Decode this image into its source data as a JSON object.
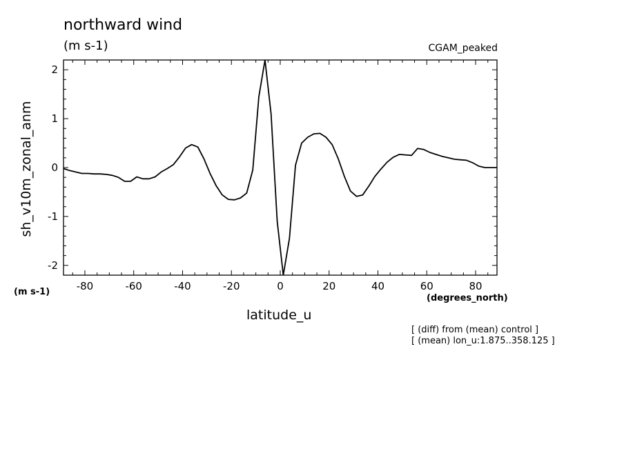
{
  "header": {
    "title": "northward wind",
    "units": "(m s-1)",
    "model": "CGAM_peaked"
  },
  "notes": {
    "line1": "[ (diff) from (mean) control ]",
    "line2": "[ (mean) lon_u:1.875..358.125 ]"
  },
  "chart_data": {
    "type": "line",
    "title": "northward wind",
    "subtitle": "(m s-1)",
    "xlabel": "latitude_u",
    "xunits": "(degrees_north)",
    "ylabel": "sh_v10m_zonal_anm",
    "yunits": "(m s-1)",
    "xlim": [
      -88.75,
      88.75
    ],
    "ylim": [
      -2.2,
      2.2
    ],
    "xticks": [
      -80,
      -60,
      -40,
      -20,
      0,
      20,
      40,
      60,
      80
    ],
    "xtick_labels": [
      "-80",
      "-60",
      "-40",
      "-20",
      "0",
      "20",
      "40",
      "60",
      "80"
    ],
    "yticks": [
      -2,
      -1,
      0,
      1,
      2
    ],
    "ytick_labels": [
      "-2",
      "-1",
      "0",
      "1",
      "2"
    ],
    "grid": false,
    "series": [
      {
        "x": [
          -88.75,
          -86.25,
          -83.75,
          -81.25,
          -78.75,
          -76.25,
          -73.75,
          -71.25,
          -68.75,
          -66.25,
          -63.75,
          -61.25,
          -58.75,
          -56.25,
          -53.75,
          -51.25,
          -48.75,
          -46.25,
          -43.75,
          -41.25,
          -38.75,
          -36.25,
          -33.75,
          -31.25,
          -28.75,
          -26.25,
          -23.75,
          -21.25,
          -18.75,
          -16.25,
          -13.75,
          -11.25,
          -8.75,
          -6.25,
          -3.75,
          -1.25,
          1.25,
          3.75,
          6.25,
          8.75,
          11.25,
          13.75,
          16.25,
          18.75,
          21.25,
          23.75,
          26.25,
          28.75,
          31.25,
          33.75,
          36.25,
          38.75,
          41.25,
          43.75,
          46.25,
          48.75,
          51.25,
          53.75,
          56.25,
          58.75,
          61.25,
          63.75,
          66.25,
          68.75,
          71.25,
          73.75,
          76.25,
          78.75,
          81.25,
          83.75,
          86.25,
          88.75
        ],
        "values": [
          -0.02,
          -0.06,
          -0.09,
          -0.12,
          -0.12,
          -0.13,
          -0.13,
          -0.14,
          -0.16,
          -0.2,
          -0.28,
          -0.28,
          -0.19,
          -0.23,
          -0.23,
          -0.19,
          -0.09,
          -0.02,
          0.06,
          0.22,
          0.4,
          0.47,
          0.42,
          0.18,
          -0.12,
          -0.37,
          -0.56,
          -0.65,
          -0.66,
          -0.62,
          -0.52,
          -0.05,
          1.45,
          2.2,
          1.1,
          -1.1,
          -2.2,
          -1.45,
          0.05,
          0.5,
          0.62,
          0.69,
          0.7,
          0.62,
          0.47,
          0.18,
          -0.18,
          -0.48,
          -0.59,
          -0.56,
          -0.38,
          -0.18,
          -0.03,
          0.11,
          0.21,
          0.27,
          0.26,
          0.25,
          0.39,
          0.37,
          0.31,
          0.27,
          0.23,
          0.2,
          0.17,
          0.16,
          0.15,
          0.1,
          0.03,
          0.0,
          0.0,
          0.0
        ]
      }
    ]
  }
}
